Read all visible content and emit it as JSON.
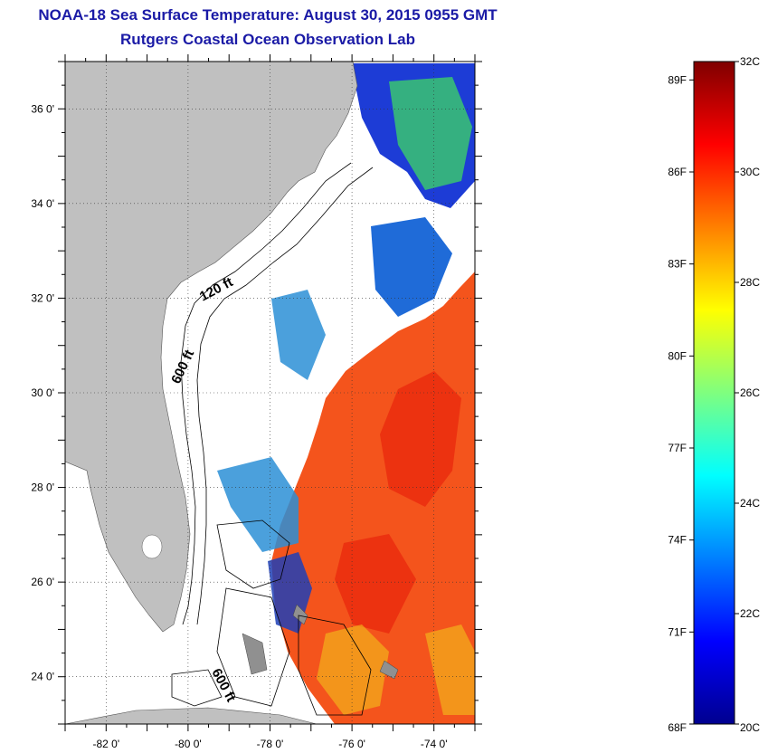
{
  "title": "NOAA-18 Sea Surface Temperature:  August 30, 2015 0955 GMT",
  "subtitle": "Rutgers Coastal Ocean Observation Lab",
  "map": {
    "lon_range": [
      -83,
      -73
    ],
    "lat_range": [
      23,
      37
    ],
    "lon_labels": [
      "-82 0'",
      "-80 0'",
      "-78 0'",
      "-76 0'",
      "-74 0'"
    ],
    "lat_labels": [
      "36 0'",
      "34 0'",
      "32 0'",
      "30 0'",
      "28 0'",
      "26 0'",
      "24 0'"
    ],
    "depth_labels": [
      "120 ft",
      "600 ft",
      "600 ft"
    ],
    "land_color": "#c0c0c0",
    "cloud_color": "#ffffff"
  },
  "colorbar": {
    "min_c": 20,
    "max_c": 32,
    "celsius_labels": [
      "32C",
      "30C",
      "28C",
      "26C",
      "24C",
      "22C",
      "20C"
    ],
    "fahrenheit_labels": [
      "89F",
      "86F",
      "83F",
      "80F",
      "77F",
      "74F",
      "71F",
      "68F"
    ],
    "colormap": "jet"
  }
}
